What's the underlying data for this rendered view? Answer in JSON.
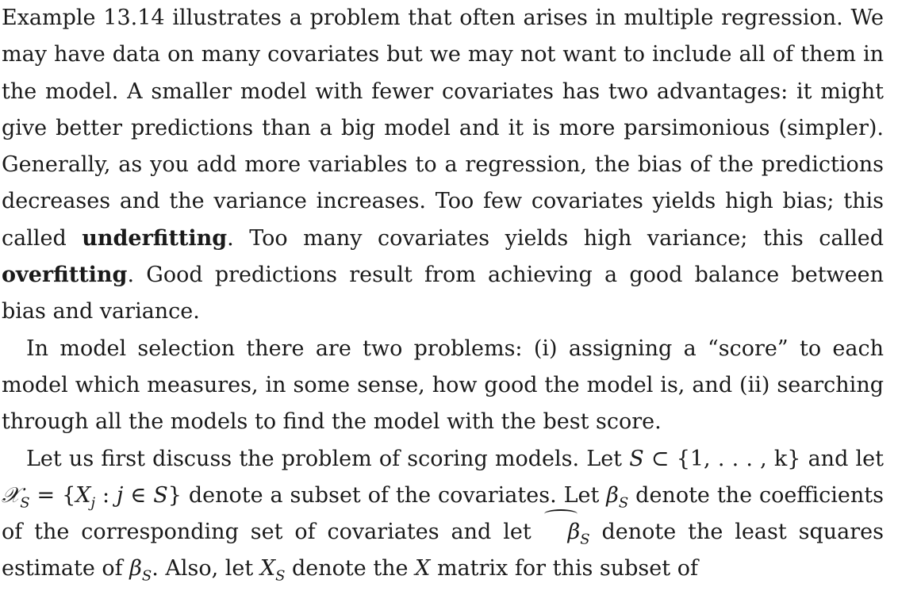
{
  "paragraphs": {
    "p1": {
      "text_a": "Example 13.14 illustrates a problem that often arises in multiple regression. We may have data on many covariates but we may not want to include all of them in the model. A smaller model with fewer covariates has two advantages: it might give better predictions than a big model and it is more parsimonious (simpler). Generally, as you add more variables to a regression, the bias of the predictions decreases and the variance increases. Too few covariates yields high bias; this called ",
      "term_underfitting": "underfitting",
      "text_b": ". Too many covariates yields high variance; this called ",
      "term_overfitting": "overfitting",
      "text_c": ". Good predictions result from achieving a good balance between bias and variance."
    },
    "p2": {
      "text": "In model selection there are two problems: (i) assigning a “score” to each model which measures, in some sense, how good the model is, and (ii) searching through all the models to find the model with the best score."
    },
    "p3": {
      "t1": "Let us first discuss the problem of scoring models. Let ",
      "S": "S",
      "subset_op": " ⊂ ",
      "set_index": "{1, . . . , k}",
      "t2": " and let ",
      "calX": "𝒳",
      "sub_S": "S",
      "eq": " = ",
      "set_open": "{",
      "X": "X",
      "sub_j": "j",
      "colon": " :  ",
      "j": "j",
      "in": " ∈ ",
      "set_S": "S",
      "set_close": "}",
      "t3": " denote a subset of the covariates. Let ",
      "beta": "β",
      "t4": " denote the coefficients of the corresponding set of covariates and let ",
      "t5": " denote the least squares estimate of ",
      "t6": ". Also, let ",
      "t7": " denote the ",
      "t8": " matrix for this subset of"
    }
  }
}
